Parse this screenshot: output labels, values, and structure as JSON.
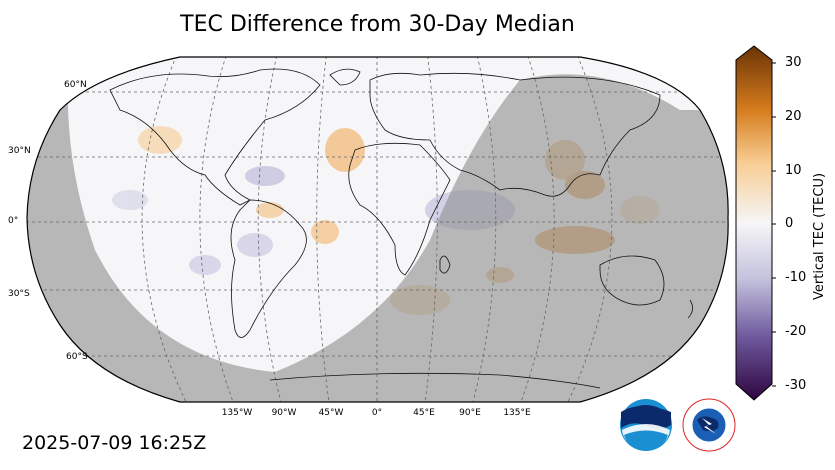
{
  "title": "TEC Difference from 30-Day Median",
  "timestamp": "2025-07-09 16:25Z",
  "colorbar": {
    "label": "Vertical TEC (TECU)",
    "ticks": [
      "30",
      "20",
      "10",
      "0",
      "-10",
      "-20",
      "-30"
    ],
    "range": [
      -30,
      30
    ],
    "colors": {
      "high": "#7a3b06",
      "mid_high": "#f3b970",
      "zero": "#f4f4f6",
      "mid_low": "#a9a6cc",
      "low": "#35084a"
    }
  },
  "map": {
    "projection": "Robinson",
    "lat_labels": [
      "60°N",
      "30°N",
      "0°",
      "30°S",
      "60°S"
    ],
    "lon_labels": [
      "135°W",
      "90°W",
      "45°W",
      "0°",
      "45°E",
      "90°E",
      "135°E"
    ],
    "night_shade_color": "#b3b3b3"
  },
  "logos": {
    "noaa_text": "NOAA",
    "nws_text": "NATIONAL WEATHER SERVICE"
  }
}
